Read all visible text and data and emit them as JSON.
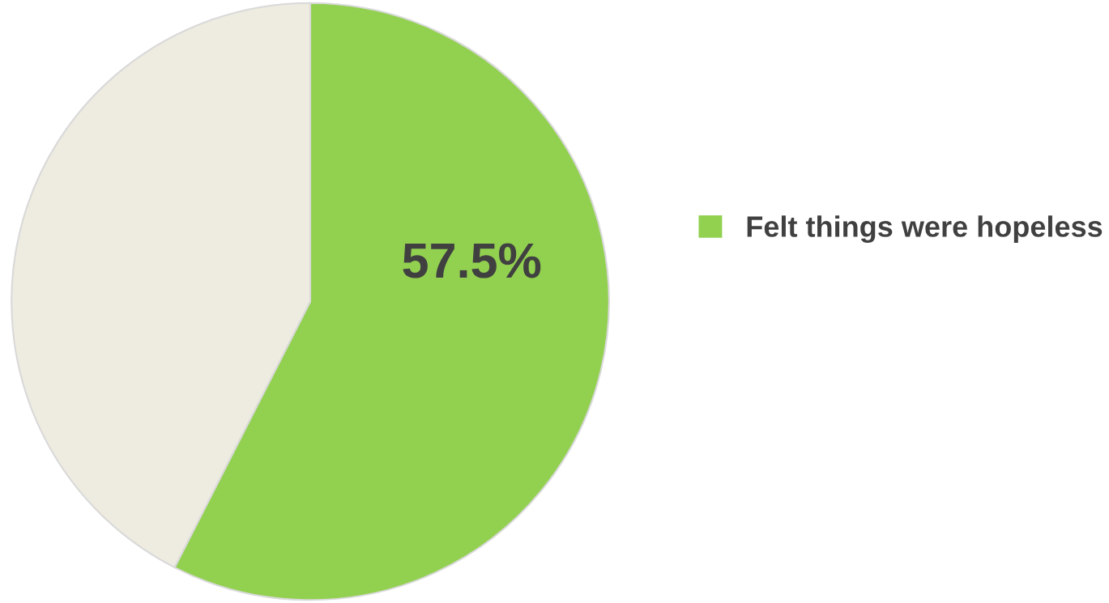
{
  "chart_data": {
    "type": "pie",
    "categories": [
      "Felt things were hopeless",
      null
    ],
    "values": [
      57.5,
      42.5
    ],
    "colors": [
      "#92d050",
      "#eeebe0"
    ],
    "value_labels": [
      "57.5%",
      null
    ],
    "legend": "right"
  }
}
